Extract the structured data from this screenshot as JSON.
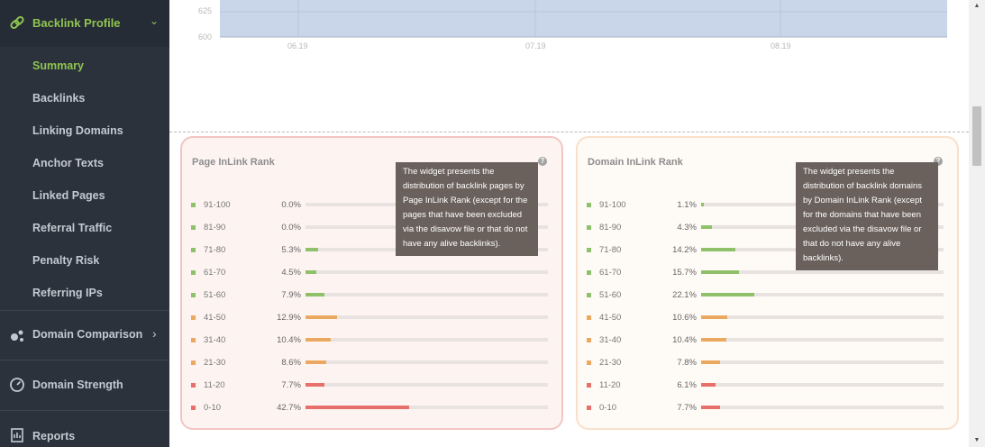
{
  "sidebar": {
    "header": {
      "label": "Backlink Profile",
      "icon": "link-icon"
    },
    "sub_items": [
      {
        "label": "Summary",
        "active": true
      },
      {
        "label": "Backlinks"
      },
      {
        "label": "Linking Domains"
      },
      {
        "label": "Anchor Texts"
      },
      {
        "label": "Linked Pages"
      },
      {
        "label": "Referral Traffic"
      },
      {
        "label": "Penalty Risk"
      },
      {
        "label": "Referring IPs"
      }
    ],
    "main_items": [
      {
        "label": "Domain Comparison",
        "icon": "bubbles-icon"
      },
      {
        "label": "Domain Strength",
        "icon": "gauge-icon"
      },
      {
        "label": "Reports",
        "icon": "report-icon"
      }
    ]
  },
  "chart": {
    "y_ticks": [
      "625",
      "600"
    ],
    "x_ticks": [
      "06.19",
      "07.19",
      "08.19"
    ],
    "area_color": "#c9d5e9"
  },
  "widgets": [
    {
      "title": "Page InLink Rank",
      "help": "?",
      "tooltip": "The widget presents the distribution of backlink pages by Page InLink Rank (except for the pages that have been excluded via the disavow file or that do not have any alive backlinks).",
      "rows": [
        {
          "range": "91-100",
          "percent": "0.0%",
          "value": 0.0,
          "color": "#8ec16a"
        },
        {
          "range": "81-90",
          "percent": "0.0%",
          "value": 0.0,
          "color": "#8ec16a"
        },
        {
          "range": "71-80",
          "percent": "5.3%",
          "value": 5.3,
          "color": "#8ec16a"
        },
        {
          "range": "61-70",
          "percent": "4.5%",
          "value": 4.5,
          "color": "#8ec16a"
        },
        {
          "range": "51-60",
          "percent": "7.9%",
          "value": 7.9,
          "color": "#8ec16a"
        },
        {
          "range": "41-50",
          "percent": "12.9%",
          "value": 12.9,
          "color": "#eaa95f"
        },
        {
          "range": "31-40",
          "percent": "10.4%",
          "value": 10.4,
          "color": "#eaa95f"
        },
        {
          "range": "21-30",
          "percent": "8.6%",
          "value": 8.6,
          "color": "#eaa95f"
        },
        {
          "range": "11-20",
          "percent": "7.7%",
          "value": 7.7,
          "color": "#e8706b"
        },
        {
          "range": "0-10",
          "percent": "42.7%",
          "value": 42.7,
          "color": "#e8706b"
        }
      ]
    },
    {
      "title": "Domain InLink Rank",
      "help": "?",
      "tooltip": "The widget presents the distribution of backlink domains by Domain InLink Rank (except for the domains that have been excluded via the disavow file or that do not have any alive backlinks).",
      "rows": [
        {
          "range": "91-100",
          "percent": "1.1%",
          "value": 1.1,
          "color": "#8ec16a"
        },
        {
          "range": "81-90",
          "percent": "4.3%",
          "value": 4.3,
          "color": "#8ec16a"
        },
        {
          "range": "71-80",
          "percent": "14.2%",
          "value": 14.2,
          "color": "#8ec16a"
        },
        {
          "range": "61-70",
          "percent": "15.7%",
          "value": 15.7,
          "color": "#8ec16a"
        },
        {
          "range": "51-60",
          "percent": "22.1%",
          "value": 22.1,
          "color": "#8ec16a"
        },
        {
          "range": "41-50",
          "percent": "10.6%",
          "value": 10.6,
          "color": "#eaa95f"
        },
        {
          "range": "31-40",
          "percent": "10.4%",
          "value": 10.4,
          "color": "#eaa95f"
        },
        {
          "range": "21-30",
          "percent": "7.8%",
          "value": 7.8,
          "color": "#eaa95f"
        },
        {
          "range": "11-20",
          "percent": "6.1%",
          "value": 6.1,
          "color": "#e8706b"
        },
        {
          "range": "0-10",
          "percent": "7.7%",
          "value": 7.7,
          "color": "#e8706b"
        }
      ]
    }
  ],
  "scrollbar": {
    "up_icon": "arrow-up-icon",
    "down_icon": "arrow-down-icon"
  }
}
